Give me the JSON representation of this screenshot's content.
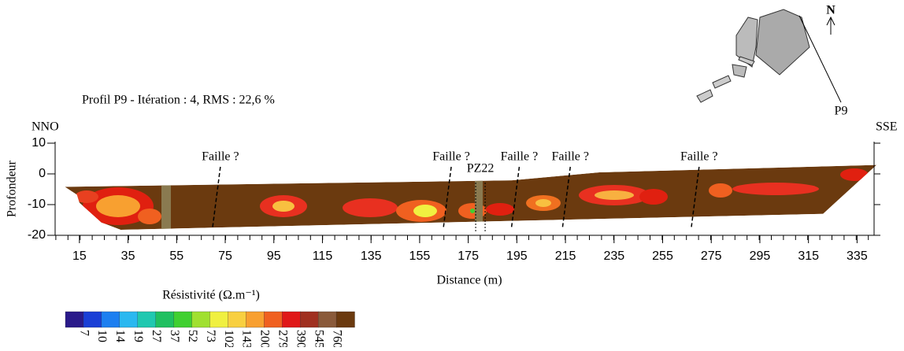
{
  "chart_data": {
    "type": "profile",
    "title": "Profil P9 - Itération : 4, RMS : 22,6 %",
    "left_label": "NNO",
    "right_label": "SSE",
    "ylabel": "Profondeur",
    "xlabel": "Distance (m)",
    "xlim": [
      5,
      342
    ],
    "ylim": [
      -20,
      10.5
    ],
    "xticks": [
      15,
      35,
      55,
      75,
      95,
      115,
      135,
      155,
      175,
      195,
      215,
      235,
      255,
      275,
      295,
      315,
      335
    ],
    "yticks": [
      10,
      0,
      -10,
      -20
    ],
    "outline": {
      "x": [
        9,
        193,
        229,
        343,
        321,
        32,
        24,
        15,
        14
      ],
      "y": [
        -4.2,
        -2.1,
        0.5,
        2.9,
        -13,
        -18.2,
        -15.8,
        -9.4,
        -6.8
      ]
    },
    "color": "#6b3a0f",
    "annotations": [
      {
        "text": "Faille ?",
        "x": 73
      },
      {
        "text": "Faille ?",
        "x": 168
      },
      {
        "text": "Faille ?",
        "x": 196
      },
      {
        "text": "Faille ?",
        "x": 217
      },
      {
        "text": "Faille ?",
        "x": 270
      }
    ],
    "well": {
      "text": "PZ22",
      "x": 180
    },
    "colorbar": {
      "title": "Résistivité (Ω.m⁻¹)",
      "labels": [
        "7",
        "10",
        "14",
        "19",
        "27",
        "37",
        "52",
        "73",
        "102",
        "143",
        "200",
        "279",
        "390",
        "545",
        "760"
      ],
      "colors": [
        "#2a1a8a",
        "#1a3fd6",
        "#1d7ff0",
        "#2ab8f0",
        "#20c8b0",
        "#20c060",
        "#40d030",
        "#a0e030",
        "#f0f040",
        "#f8d040",
        "#f8a030",
        "#f06020",
        "#e01818",
        "#a03020",
        "#8a5a3a",
        "#6b3a0f"
      ]
    },
    "map": {
      "north": "N",
      "profile": "P9"
    }
  }
}
